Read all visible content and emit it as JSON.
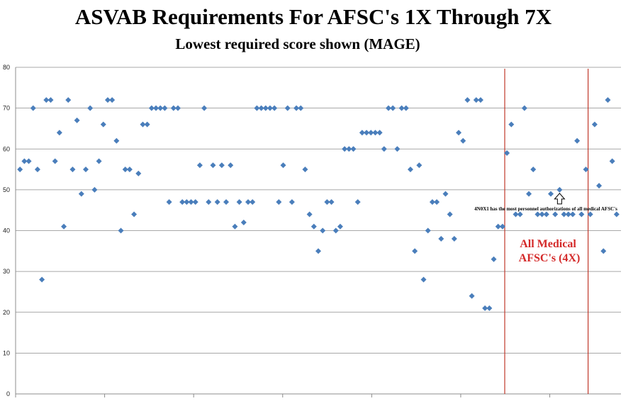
{
  "chart_data": {
    "type": "scatter",
    "title": "ASVAB Requirements For AFSC's 1X Through 7X",
    "subtitle": "Lowest required score shown (MAGE)",
    "xlabel": "",
    "ylabel": "",
    "ylim": [
      0,
      80
    ],
    "yticks": [
      "0",
      "10",
      "20",
      "30",
      "40",
      "50",
      "60",
      "70",
      "80"
    ],
    "xlim": [
      0,
      138
    ],
    "grid": true,
    "legend": "none",
    "marker_color": "#4a7ebb",
    "series": [
      {
        "x": [
          1,
          2,
          3,
          4,
          5,
          6,
          7,
          8,
          9,
          10,
          11,
          12,
          13,
          14,
          15,
          16,
          17,
          18,
          19,
          20,
          21,
          22,
          23,
          24,
          25,
          26,
          27,
          28,
          29,
          30,
          31,
          32,
          33,
          34,
          35,
          36,
          37,
          38,
          39,
          40,
          41,
          42,
          43,
          44,
          45,
          46,
          47,
          48,
          49,
          50,
          51,
          52,
          53,
          54,
          55,
          56,
          57,
          58,
          59,
          60,
          61,
          62,
          63,
          64,
          65,
          66,
          67,
          68,
          69,
          70,
          71,
          72,
          73,
          74,
          75,
          76,
          77,
          78,
          79,
          80,
          81,
          82,
          83,
          84,
          85,
          86,
          87,
          88,
          89,
          90,
          91,
          92,
          93,
          94,
          95,
          96,
          97,
          98,
          99,
          100,
          101,
          102,
          103,
          104,
          105,
          106,
          107,
          108,
          109,
          110,
          111,
          112,
          113,
          114,
          115,
          116,
          117,
          118,
          119,
          120,
          121,
          122,
          123,
          124,
          125,
          126,
          127,
          128,
          129,
          130,
          131,
          132,
          133,
          134,
          135,
          136,
          137
        ],
        "y": [
          55,
          57,
          57,
          70,
          55,
          28,
          72,
          72,
          57,
          64,
          41,
          72,
          55,
          67,
          49,
          55,
          70,
          50,
          57,
          66,
          72,
          72,
          62,
          40,
          55,
          55,
          44,
          54,
          66,
          66,
          70,
          70,
          70,
          70,
          47,
          70,
          70,
          47,
          47,
          47,
          47,
          56,
          70,
          47,
          56,
          47,
          56,
          47,
          56,
          41,
          47,
          42,
          47,
          47,
          70,
          70,
          70,
          70,
          70,
          47,
          56,
          70,
          47,
          70,
          70,
          55,
          44,
          41,
          35,
          40,
          47,
          47,
          40,
          41,
          60,
          60,
          60,
          47,
          64,
          64,
          64,
          64,
          64,
          60,
          70,
          70,
          60,
          70,
          70,
          55,
          35,
          56,
          28,
          40,
          47,
          47,
          38,
          49,
          44,
          38,
          64,
          62,
          72,
          24,
          72,
          72,
          21,
          21,
          33,
          41,
          41,
          59,
          66,
          44,
          44,
          70,
          49,
          55,
          44,
          44,
          44,
          49,
          44,
          50,
          44,
          44,
          44,
          62,
          44,
          55,
          44,
          66,
          51,
          35,
          72,
          57,
          44
        ]
      }
    ],
    "section_dividers_x": [
      111.5,
      130.5
    ],
    "divider_color": "#c0392b",
    "annotations": [
      {
        "text": "All Medical AFSC's (4X)",
        "line1": "All Medical",
        "line2": "AFSC's (4X)",
        "color": "#d42a2a"
      },
      {
        "text": "4N0X1 has the most personnel authorizations of all medical AFSC's",
        "color": "#000000",
        "target": {
          "x": 124,
          "y": 50
        }
      }
    ]
  }
}
